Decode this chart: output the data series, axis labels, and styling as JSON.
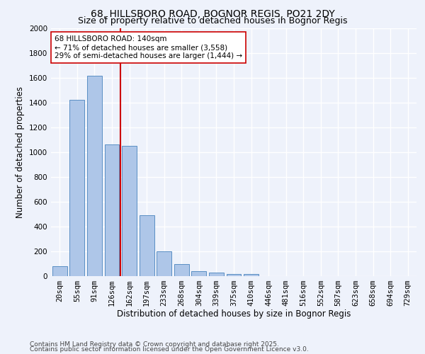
{
  "title1": "68, HILLSBORO ROAD, BOGNOR REGIS, PO21 2DY",
  "title2": "Size of property relative to detached houses in Bognor Regis",
  "xlabel": "Distribution of detached houses by size in Bognor Regis",
  "ylabel": "Number of detached properties",
  "categories": [
    "20sqm",
    "55sqm",
    "91sqm",
    "126sqm",
    "162sqm",
    "197sqm",
    "233sqm",
    "268sqm",
    "304sqm",
    "339sqm",
    "375sqm",
    "410sqm",
    "446sqm",
    "481sqm",
    "516sqm",
    "552sqm",
    "587sqm",
    "623sqm",
    "658sqm",
    "694sqm",
    "729sqm"
  ],
  "values": [
    80,
    1420,
    1620,
    1060,
    1050,
    490,
    200,
    100,
    38,
    28,
    20,
    20,
    0,
    0,
    0,
    0,
    0,
    0,
    0,
    0,
    0
  ],
  "bar_color": "#aec6e8",
  "bar_edge_color": "#5a8fc4",
  "vline_x": 3.5,
  "vline_color": "#cc0000",
  "annotation_text": "68 HILLSBORO ROAD: 140sqm\n← 71% of detached houses are smaller (3,558)\n29% of semi-detached houses are larger (1,444) →",
  "annotation_box_color": "#ffffff",
  "annotation_box_edge": "#cc0000",
  "ylim": [
    0,
    2000
  ],
  "yticks": [
    0,
    200,
    400,
    600,
    800,
    1000,
    1200,
    1400,
    1600,
    1800,
    2000
  ],
  "footer1": "Contains HM Land Registry data © Crown copyright and database right 2025.",
  "footer2": "Contains public sector information licensed under the Open Government Licence v3.0.",
  "bg_color": "#eef2fb",
  "grid_color": "#ffffff",
  "title_fontsize": 10,
  "subtitle_fontsize": 9,
  "axis_label_fontsize": 8.5,
  "tick_fontsize": 7.5,
  "footer_fontsize": 6.5
}
